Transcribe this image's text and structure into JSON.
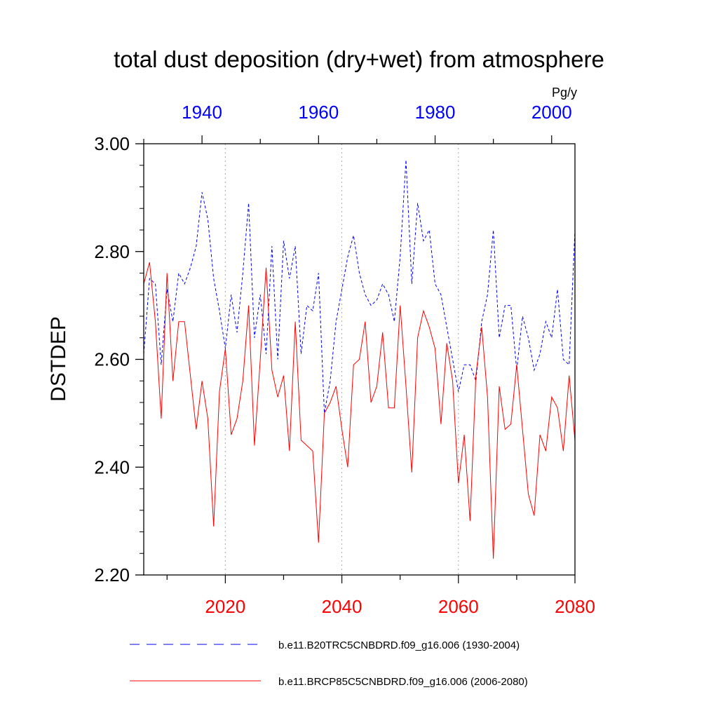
{
  "chart_data": {
    "type": "line",
    "title": "total dust deposition (dry+wet) from atmosphere",
    "ylabel": "DSTDEP",
    "units": "Pg/y",
    "ylim": [
      2.2,
      3.0
    ],
    "yticks": [
      "2.20",
      "2.40",
      "2.60",
      "2.80",
      "3.00"
    ],
    "ytick_values": [
      2.2,
      2.4,
      2.6,
      2.8,
      3.0
    ],
    "bottom_axis": {
      "range": [
        2006,
        2080
      ],
      "ticks": [
        "2020",
        "2040",
        "2060",
        "2080"
      ],
      "tick_values": [
        2020,
        2040,
        2060,
        2080
      ],
      "color": "#ff0000"
    },
    "top_axis": {
      "range": [
        1930,
        2004
      ],
      "ticks": [
        "1940",
        "1960",
        "1980",
        "2000"
      ],
      "tick_values": [
        1940,
        1960,
        1980,
        2000
      ],
      "color": "#0000ff"
    },
    "grid": "vertical dotted at bottom-axis ticks",
    "legend_position": "bottom",
    "series": [
      {
        "name": "b.e11.B20TRC5CNBDRD.f09_g16.006 (1930-2004)",
        "axis": "top",
        "color": "#0000ff",
        "style": "dashed",
        "start_year": 1930,
        "values": [
          2.61,
          2.75,
          2.74,
          2.59,
          2.73,
          2.67,
          2.76,
          2.74,
          2.77,
          2.81,
          2.91,
          2.86,
          2.75,
          2.69,
          2.62,
          2.72,
          2.65,
          2.76,
          2.89,
          2.64,
          2.72,
          2.61,
          2.81,
          2.6,
          2.82,
          2.75,
          2.81,
          2.61,
          2.7,
          2.69,
          2.76,
          2.5,
          2.56,
          2.67,
          2.73,
          2.79,
          2.83,
          2.76,
          2.72,
          2.7,
          2.71,
          2.74,
          2.72,
          2.67,
          2.79,
          2.97,
          2.74,
          2.89,
          2.82,
          2.84,
          2.74,
          2.72,
          2.66,
          2.6,
          2.54,
          2.59,
          2.59,
          2.56,
          2.67,
          2.72,
          2.84,
          2.64,
          2.7,
          2.7,
          2.58,
          2.68,
          2.64,
          2.58,
          2.61,
          2.67,
          2.64,
          2.73,
          2.6,
          2.59,
          2.84
        ]
      },
      {
        "name": "b.e11.BRCP85C5CNBDRD.f09_g16.006 (2006-2080)",
        "axis": "bottom",
        "color": "#ff0000",
        "style": "solid",
        "start_year": 2006,
        "values": [
          2.74,
          2.78,
          2.67,
          2.49,
          2.76,
          2.56,
          2.67,
          2.67,
          2.57,
          2.47,
          2.56,
          2.49,
          2.29,
          2.54,
          2.62,
          2.46,
          2.49,
          2.56,
          2.7,
          2.44,
          2.6,
          2.77,
          2.58,
          2.53,
          2.57,
          2.43,
          2.67,
          2.45,
          2.44,
          2.43,
          2.26,
          2.5,
          2.52,
          2.55,
          2.47,
          2.4,
          2.59,
          2.6,
          2.67,
          2.52,
          2.55,
          2.65,
          2.51,
          2.51,
          2.7,
          2.55,
          2.39,
          2.64,
          2.69,
          2.66,
          2.62,
          2.48,
          2.63,
          2.56,
          2.37,
          2.46,
          2.3,
          2.57,
          2.66,
          2.53,
          2.23,
          2.55,
          2.47,
          2.48,
          2.59,
          2.47,
          2.35,
          2.31,
          2.46,
          2.43,
          2.53,
          2.51,
          2.43,
          2.57,
          2.45
        ]
      }
    ]
  }
}
